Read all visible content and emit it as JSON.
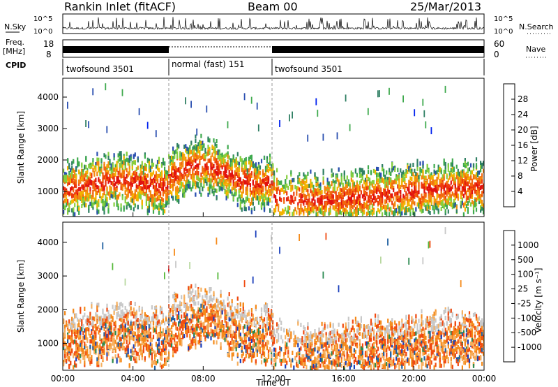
{
  "header": {
    "station": "Rankin Inlet (fitACF)",
    "beam": "Beam 00",
    "date": "25/Mar/2013"
  },
  "colors": {
    "scale_power": [
      "#0022ee",
      "#2a4fb0",
      "#2f7f63",
      "#3faa4e",
      "#86cf3e",
      "#f4b400",
      "#f48a10",
      "#f26a10",
      "#ee3a0c",
      "#e01010"
    ],
    "scale_velocity": [
      "#e01010",
      "#f04a10",
      "#f58a1a",
      "#f6b060",
      "#c8c8c8",
      "#b8d8a0",
      "#56b83a",
      "#2a8a50",
      "#1f5fa0",
      "#1a3fbb"
    ],
    "ground": "#c8c8c8"
  },
  "chart_data": [
    {
      "type": "line",
      "panel": "noise",
      "series": [
        {
          "name": "N.Sky",
          "style": "solid"
        },
        {
          "name": "N.Search",
          "style": "dotted"
        }
      ],
      "ylabel": "N.Sky",
      "ylabel_right": "N.Search",
      "yticks": [
        "10^5",
        "10^0"
      ],
      "yticks_right": [
        "10^5",
        "10^0"
      ],
      "scale": "log"
    },
    {
      "type": "line",
      "panel": "frequency",
      "series": [
        {
          "name": "Freq.",
          "style": "solid"
        },
        {
          "name": "Nave",
          "style": "dotted"
        }
      ],
      "ylabel": "Freq.",
      "yunit": "[MHz]",
      "ylabel_right": "Nave",
      "yticks": [
        18,
        8
      ],
      "yticks_right": [
        60,
        0
      ]
    },
    {
      "type": "table",
      "panel": "cpid",
      "label": "CPID",
      "segments": [
        {
          "start": "00:00",
          "end": "06:00",
          "name": "twofsound 3501"
        },
        {
          "start": "06:00",
          "end": "12:00",
          "name": "normal (fast) 151"
        },
        {
          "start": "12:00",
          "end": "24:00",
          "name": "twofsound 3501"
        }
      ]
    },
    {
      "type": "heatmap",
      "panel": "power",
      "ylabel": "Slant Range [km]",
      "yticks": [
        1000,
        2000,
        3000,
        4000
      ],
      "ylim": [
        200,
        4600
      ],
      "xticks": [
        "00:00",
        "04:00",
        "08:00",
        "12:00",
        "16:00",
        "20:00",
        "00:00"
      ],
      "xlim": [
        0,
        24
      ],
      "colorbar": {
        "label": "Power [dB]",
        "ticks": [
          4,
          8,
          12,
          16,
          20,
          24,
          28
        ],
        "range": [
          0,
          30
        ]
      }
    },
    {
      "type": "heatmap",
      "panel": "velocity",
      "ylabel": "Slant Range [km]",
      "yticks": [
        1000,
        2000,
        3000,
        4000
      ],
      "ylim": [
        200,
        4600
      ],
      "xticks": [
        "00:00",
        "04:00",
        "08:00",
        "12:00",
        "16:00",
        "20:00",
        "00:00"
      ],
      "xlim": [
        0,
        24
      ],
      "xlabel": "Time UT",
      "colorbar": {
        "label": "Velocity [m s⁻¹]",
        "ticks": [
          1000,
          500,
          100,
          25,
          -25,
          -100,
          -500,
          -1000
        ]
      }
    }
  ]
}
